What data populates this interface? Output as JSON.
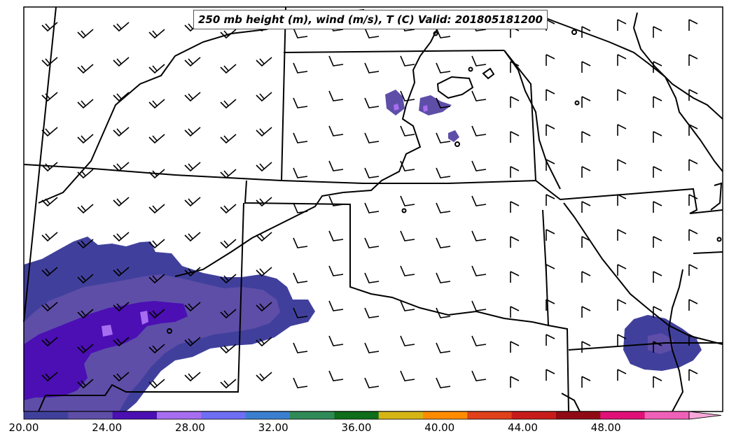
{
  "title": "250 mb height (m), wind (m/s), T (C) Valid: 201805181200",
  "colorbar": {
    "ticks": [
      "20.00",
      "24.00",
      "28.00",
      "32.00",
      "36.00",
      "40.00",
      "44.00",
      "48.00"
    ],
    "min": 20,
    "max": 52,
    "step": 2,
    "colors": [
      "#40409c",
      "#5e4ea8",
      "#4b0fb4",
      "#a66df0",
      "#6e6ef5",
      "#3a7fcf",
      "#2e8b57",
      "#0e6e1a",
      "#d4b514",
      "#ff8c00",
      "#e0401a",
      "#c81c1c",
      "#8f0a14",
      "#e01078",
      "#f060b8",
      "#f8a8d8"
    ]
  },
  "colors": {
    "boundary": "#000000",
    "band_1": "#40409c",
    "band_2": "#5e4ea8",
    "band_3": "#4b0fb4",
    "band_4": "#a66df0"
  }
}
